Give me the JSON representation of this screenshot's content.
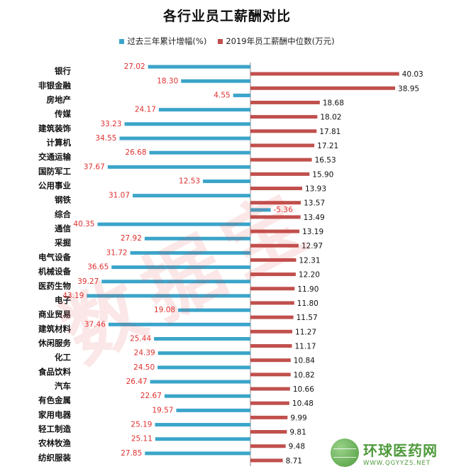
{
  "chart_data": {
    "type": "bar",
    "title": "各行业员工薪酬对比",
    "categories": [
      "银行",
      "非银金融",
      "房地产",
      "传媒",
      "建筑装饰",
      "计算机",
      "交通运输",
      "国防军工",
      "公用事业",
      "钢铁",
      "综合",
      "通信",
      "采掘",
      "电气设备",
      "机械设备",
      "医药生物",
      "电子",
      "商业贸易",
      "建筑材料",
      "休闲服务",
      "化工",
      "食品饮料",
      "汽车",
      "有色金属",
      "家用电器",
      "轻工制造",
      "农林牧渔",
      "纺织服装"
    ],
    "series": [
      {
        "name": "过去三年累计增幅(%)",
        "color": "#3ba4c9",
        "label_color": "#e03030",
        "values": [
          27.02,
          18.3,
          4.55,
          24.17,
          33.23,
          34.55,
          26.68,
          37.67,
          12.53,
          31.07,
          -5.36,
          40.35,
          27.92,
          31.72,
          36.65,
          39.27,
          43.19,
          19.08,
          37.46,
          25.44,
          24.39,
          24.5,
          26.47,
          22.67,
          19.57,
          25.19,
          25.11,
          27.85
        ]
      },
      {
        "name": "2019年员工薪酬中位数(万元)",
        "color": "#c0504d",
        "label_color": "#111111",
        "values": [
          40.03,
          38.95,
          18.68,
          18.02,
          17.81,
          17.21,
          16.53,
          15.9,
          13.93,
          13.57,
          13.49,
          13.19,
          12.97,
          12.31,
          12.2,
          11.9,
          11.8,
          11.57,
          11.27,
          11.17,
          10.84,
          10.82,
          10.66,
          10.48,
          9.99,
          9.81,
          9.48,
          8.71
        ]
      }
    ],
    "legend_position": "top",
    "grid": false
  },
  "watermark_text": "数据宝",
  "logo": {
    "name": "环球医药网",
    "url": "WWW.QGYYZS.NET",
    "registered": "®"
  }
}
